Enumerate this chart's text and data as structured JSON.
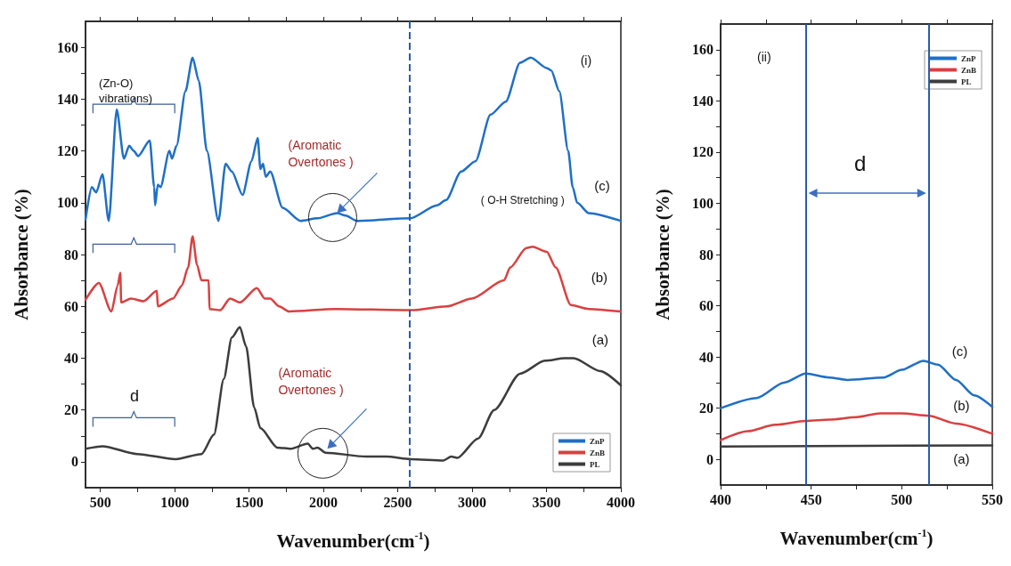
{
  "chart_data": [
    {
      "type": "line",
      "xlabel": "Wavenumber(cm$^{-1}$)",
      "ylabel": "Absorbance (%)",
      "xlim": [
        400,
        4000
      ],
      "ylim": [
        -10,
        170
      ],
      "xticks": [
        500,
        {
          "value": 750,
          "label": null
        },
        1000,
        {
          "value": 1250,
          "label": null
        },
        1500,
        {
          "value": 1750,
          "label": null
        },
        2000,
        {
          "value": 2250,
          "label": null
        },
        2500,
        {
          "value": 2750,
          "label": null
        },
        3000,
        {
          "value": 3250,
          "label": null
        },
        3500,
        {
          "value": 3750,
          "label": null
        },
        4000
      ],
      "yticks": [
        0,
        {
          "value": 10,
          "label": null
        },
        20,
        {
          "value": 30,
          "label": null
        },
        40,
        {
          "value": 50,
          "label": null
        },
        60,
        {
          "value": 70,
          "label": null
        },
        80,
        {
          "value": 90,
          "label": null
        },
        100,
        {
          "value": 110,
          "label": null
        },
        120,
        {
          "value": 130,
          "label": null
        },
        140,
        {
          "value": 150,
          "label": null
        },
        160
      ],
      "legend": "bottom right",
      "series": [
        {
          "name": "ZnP",
          "color": "#1f6fc5",
          "x": [
            400,
            442,
            472,
            514,
            556,
            610,
            658,
            694,
            724,
            754,
            832,
            862,
            868,
            886,
            904,
            964,
            982,
            1012,
            1072,
            1120,
            1162,
            1216,
            1294,
            1342,
            1384,
            1456,
            1516,
            1558,
            1576,
            1594,
            1612,
            1642,
            1726,
            1846,
            1960,
            2092,
            2150,
            2224,
            2584,
            2764,
            2824,
            2926,
            3022,
            3124,
            3226,
            3322,
            3394,
            3502,
            3532,
            3586,
            3646,
            3676,
            3706,
            3784,
            4000
          ],
          "values": [
            93.5,
            106,
            104,
            111,
            93,
            136,
            117,
            122,
            120,
            118,
            124,
            106,
            99,
            107,
            106,
            120,
            117,
            122,
            143,
            156,
            147,
            120,
            93,
            115,
            112,
            103,
            116,
            125,
            113,
            115,
            110,
            112,
            98,
            93,
            94,
            96,
            95,
            93,
            94,
            99,
            101,
            112,
            116,
            134,
            139,
            154,
            156,
            152,
            151,
            143,
            120,
            106,
            100,
            96,
            93
          ]
        },
        {
          "name": "ZnB",
          "color": "#d94040",
          "x": [
            400,
            490,
            574,
            616,
            634,
            640,
            706,
            790,
            880,
            886,
            988,
            1048,
            1090,
            1120,
            1150,
            1180,
            1228,
            1234,
            1306,
            1372,
            1438,
            1552,
            1606,
            1642,
            1702,
            1768,
            2080,
            2584,
            2830,
            2998,
            3214,
            3256,
            3364,
            3406,
            3502,
            3562,
            3664,
            3784,
            4000
          ],
          "values": [
            62.5,
            69,
            58,
            68,
            73,
            61.5,
            63,
            62,
            66,
            60,
            63,
            68,
            75,
            87,
            76,
            70,
            70,
            59,
            58.5,
            63,
            61.5,
            67,
            63,
            63,
            60,
            58,
            59,
            58.5,
            60,
            63,
            70,
            75,
            82.5,
            83,
            81,
            75,
            60.5,
            59,
            58
          ]
        },
        {
          "name": "PL",
          "color": "#3c3c3c",
          "x": [
            400,
            514,
            748,
            1006,
            1180,
            1264,
            1330,
            1384,
            1438,
            1480,
            1534,
            1576,
            1690,
            1780,
            1894,
            1930,
            1960,
            2014,
            2290,
            2422,
            2590,
            2806,
            2860,
            2900,
            3040,
            3148,
            3322,
            3490,
            3622,
            3682,
            3862,
            4000
          ],
          "values": [
            5,
            6,
            3,
            1,
            3,
            10.5,
            32,
            48,
            52,
            44.5,
            21,
            13,
            5.5,
            5,
            7,
            5,
            5.5,
            3.5,
            2,
            2,
            1,
            0.5,
            2,
            1.5,
            9,
            20,
            34,
            39,
            40,
            40,
            35,
            29.5
          ]
        }
      ],
      "ref_lines": [
        {
          "axis": "x",
          "value": 2580,
          "color": "#2a5caa",
          "line_style": "dashed"
        }
      ],
      "annotations": [
        "(Zn-O) vibrations)",
        "(i)",
        "(Aromatic Overtones )",
        "( O-H Stretching )",
        "(c)",
        "(b)",
        "(a)",
        "(Aromatic Overtones )",
        "d"
      ]
    },
    {
      "type": "line",
      "xlabel": "Wavenumber(cm$^{-1}$)",
      "ylabel": "Absorbance (%)",
      "xlim": [
        400,
        550
      ],
      "ylim": [
        -10,
        170
      ],
      "xticks": [
        400,
        {
          "value": 425,
          "label": null
        },
        450,
        {
          "value": 475,
          "label": null
        },
        500,
        {
          "value": 525,
          "label": null
        },
        550
      ],
      "yticks": [
        0,
        {
          "value": 10,
          "label": null
        },
        20,
        {
          "value": 30,
          "label": null
        },
        40,
        {
          "value": 50,
          "label": null
        },
        60,
        {
          "value": 70,
          "label": null
        },
        80,
        {
          "value": 90,
          "label": null
        },
        100,
        {
          "value": 110,
          "label": null
        },
        120,
        {
          "value": 130,
          "label": null
        },
        140,
        {
          "value": 150,
          "label": null
        },
        160
      ],
      "legend": "top right",
      "series": [
        {
          "name": "ZnP",
          "color": "#1f6fc5",
          "x": [
            400,
            420,
            435,
            447,
            460,
            470,
            490,
            500,
            512,
            520,
            530,
            540,
            550
          ],
          "values": [
            20,
            24,
            30,
            33.5,
            32,
            31,
            32,
            35,
            38.5,
            37,
            31,
            25,
            20.5
          ]
        },
        {
          "name": "ZnB",
          "color": "#d94040",
          "x": [
            400,
            415,
            430,
            447,
            460,
            475,
            488,
            500,
            515,
            530,
            550
          ],
          "values": [
            7.5,
            11,
            13.5,
            15,
            15.5,
            16.5,
            18,
            18,
            17,
            14,
            10
          ]
        },
        {
          "name": "PL",
          "color": "#3c3c3c",
          "x": [
            400,
            550
          ],
          "values": [
            5,
            5.5
          ]
        }
      ],
      "ref_lines": [
        {
          "axis": "x",
          "value": 447,
          "color": "#2a5caa"
        },
        {
          "axis": "x",
          "value": 515,
          "color": "#2a5caa"
        }
      ],
      "annotations": [
        "(ii)",
        "d",
        "(c)",
        "(b)",
        "(a)"
      ]
    }
  ]
}
